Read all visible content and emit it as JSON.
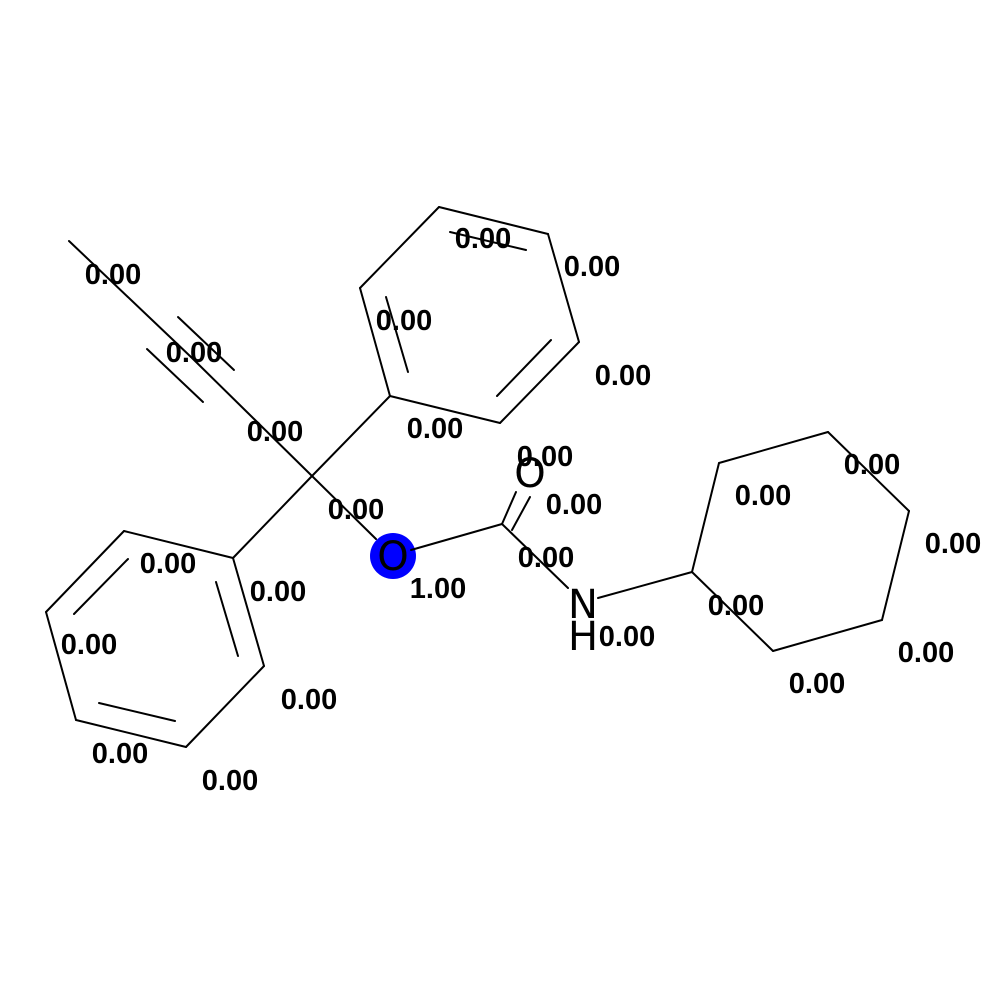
{
  "highlight_color": "#0000ff",
  "atoms": [
    {
      "id": "ether-oxygen",
      "symbol": "O",
      "highlighted": true
    },
    {
      "id": "carbonyl-oxygen",
      "symbol": "O",
      "highlighted": false
    },
    {
      "id": "amide-nitrogen",
      "symbol": "N",
      "highlighted": false
    },
    {
      "id": "amide-hydrogen",
      "symbol": "H",
      "highlighted": false
    }
  ],
  "weights": [
    "0.00",
    "0.00",
    "0.00",
    "0.00",
    "0.00",
    "0.00",
    "0.00",
    "0.00",
    "0.00",
    "0.00",
    "0.00",
    "0.00",
    "0.00",
    "0.00",
    "0.00",
    "0.00",
    "0.00",
    "0.00",
    "1.00",
    "0.00",
    "0.00",
    "0.00",
    "0.00",
    "0.00",
    "0.00",
    "0.00",
    "0.00",
    "0.00",
    "0.00"
  ]
}
